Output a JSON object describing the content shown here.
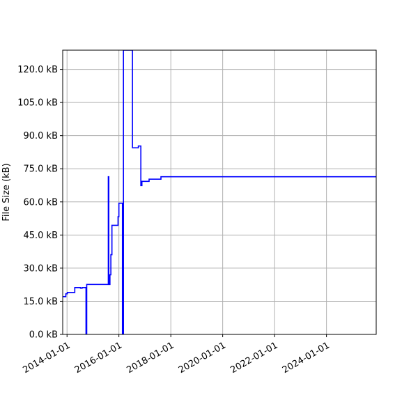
{
  "chart_data": {
    "type": "line",
    "title": "",
    "xlabel": "",
    "ylabel": "File Size (kB)",
    "x_axis_type": "date",
    "xlim": [
      "2013-11-01",
      "2025-12-01"
    ],
    "ylim": [
      0,
      128700
    ],
    "grid": true,
    "legend": "none",
    "line_color": "#0000ff",
    "x_ticks": [
      {
        "value": "2014-01-01",
        "label": "2014-01-01"
      },
      {
        "value": "2016-01-01",
        "label": "2016-01-01"
      },
      {
        "value": "2018-01-01",
        "label": "2018-01-01"
      },
      {
        "value": "2020-01-01",
        "label": "2020-01-01"
      },
      {
        "value": "2022-01-01",
        "label": "2022-01-01"
      },
      {
        "value": "2024-01-01",
        "label": "2024-01-01"
      }
    ],
    "y_ticks": [
      {
        "value": 0,
        "label": "0.0 kB"
      },
      {
        "value": 15000,
        "label": "15.0 kB"
      },
      {
        "value": 30000,
        "label": "30.0 kB"
      },
      {
        "value": 45000,
        "label": "45.0 kB"
      },
      {
        "value": 60000,
        "label": "60.0 kB"
      },
      {
        "value": 75000,
        "label": "75.0 kB"
      },
      {
        "value": 90000,
        "label": "90.0 kB"
      },
      {
        "value": 105000,
        "label": "105.0 kB"
      },
      {
        "value": 120000,
        "label": "120.0 kB"
      }
    ],
    "series": [
      {
        "points": [
          [
            "2013-11-01",
            17100
          ],
          [
            "2013-12-15",
            17100
          ],
          [
            "2013-12-15",
            18400
          ],
          [
            "2014-01-05",
            18400
          ],
          [
            "2014-01-05",
            19000
          ],
          [
            "2014-04-20",
            19000
          ],
          [
            "2014-04-20",
            21200
          ],
          [
            "2014-07-10",
            21200
          ],
          [
            "2014-07-10",
            20900
          ],
          [
            "2014-08-01",
            20900
          ],
          [
            "2014-08-01",
            21200
          ],
          [
            "2014-09-25",
            21200
          ],
          [
            "2014-09-25",
            0
          ],
          [
            "2014-10-05",
            0
          ],
          [
            "2014-10-05",
            22600
          ],
          [
            "2015-08-05",
            22600
          ],
          [
            "2015-08-05",
            71400
          ],
          [
            "2015-08-12",
            71400
          ],
          [
            "2015-08-12",
            22600
          ],
          [
            "2015-08-28",
            22600
          ],
          [
            "2015-08-28",
            27000
          ],
          [
            "2015-09-10",
            27000
          ],
          [
            "2015-09-10",
            36100
          ],
          [
            "2015-09-25",
            36100
          ],
          [
            "2015-09-25",
            49400
          ],
          [
            "2015-12-20",
            49400
          ],
          [
            "2015-12-20",
            53300
          ],
          [
            "2016-01-01",
            53300
          ],
          [
            "2016-01-01",
            59400
          ],
          [
            "2016-02-20",
            59400
          ],
          [
            "2016-02-20",
            0
          ],
          [
            "2016-03-05",
            0
          ],
          [
            "2016-03-05",
            128700
          ],
          [
            "2016-07-10",
            128700
          ],
          [
            "2016-07-10",
            84500
          ],
          [
            "2016-10-01",
            84500
          ],
          [
            "2016-10-01",
            85300
          ],
          [
            "2016-11-05",
            85300
          ],
          [
            "2016-11-05",
            67400
          ],
          [
            "2016-11-20",
            67400
          ],
          [
            "2016-11-20",
            69300
          ],
          [
            "2017-03-01",
            69300
          ],
          [
            "2017-03-01",
            70300
          ],
          [
            "2017-08-15",
            70300
          ],
          [
            "2017-08-15",
            71400
          ],
          [
            "2025-12-01",
            71400
          ]
        ]
      }
    ]
  }
}
